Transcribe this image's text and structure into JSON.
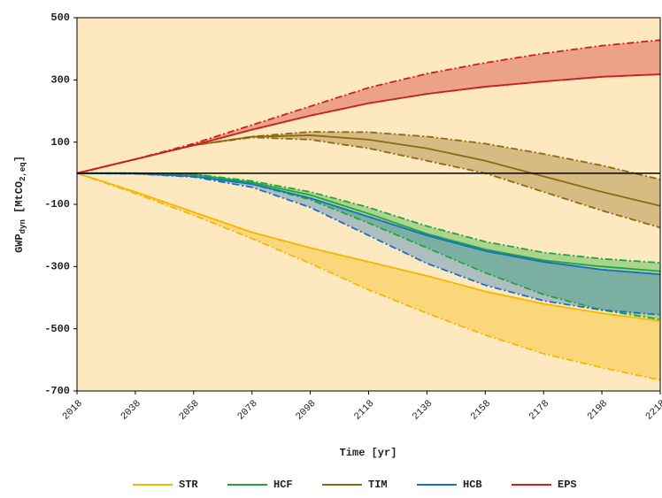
{
  "chart_data": {
    "type": "band-line",
    "xlabel": "Time [yr]",
    "ylabel": [
      "GWP",
      "dyn",
      " [MtCO",
      "2,eq",
      "]"
    ],
    "x": [
      2018,
      2038,
      2058,
      2078,
      2098,
      2118,
      2138,
      2158,
      2178,
      2198,
      2218
    ],
    "xlim": [
      2018,
      2218
    ],
    "xticks": [
      2018,
      2038,
      2058,
      2078,
      2098,
      2118,
      2138,
      2158,
      2178,
      2198,
      2218
    ],
    "ylim": [
      -700,
      500
    ],
    "yticks": [
      -700,
      -500,
      -300,
      -100,
      100,
      300,
      500
    ],
    "legend": "bottom",
    "series": [
      {
        "name": "STR",
        "color": "#f5b800",
        "values": [
          0,
          -60,
          -125,
          -190,
          -240,
          -285,
          -330,
          -380,
          -420,
          -450,
          -475
        ],
        "upper": [
          0,
          -60,
          -125,
          -190,
          -240,
          -285,
          -330,
          -380,
          -420,
          -450,
          -475
        ],
        "lower": [
          0,
          -65,
          -135,
          -210,
          -290,
          -375,
          -450,
          -520,
          -580,
          -625,
          -665
        ]
      },
      {
        "name": "HCF",
        "color": "#1aa83a",
        "values": [
          0,
          0,
          -4,
          -30,
          -70,
          -130,
          -195,
          -245,
          -280,
          -300,
          -315
        ],
        "upper": [
          0,
          0,
          -3,
          -25,
          -60,
          -110,
          -170,
          -220,
          -255,
          -275,
          -288
        ],
        "lower": [
          0,
          0,
          -5,
          -35,
          -85,
          -160,
          -240,
          -320,
          -390,
          -440,
          -470
        ]
      },
      {
        "name": "TIM",
        "color": "#8b6a12",
        "values": [
          0,
          45,
          90,
          117,
          122,
          108,
          80,
          40,
          -10,
          -60,
          -105
        ],
        "upper": [
          0,
          45,
          90,
          118,
          133,
          132,
          118,
          95,
          62,
          25,
          -20
        ],
        "lower": [
          0,
          45,
          90,
          115,
          108,
          80,
          40,
          0,
          -60,
          -120,
          -175
        ]
      },
      {
        "name": "HCB",
        "color": "#1a6fc4",
        "values": [
          0,
          -1,
          -10,
          -35,
          -80,
          -140,
          -200,
          -250,
          -285,
          -310,
          -325
        ],
        "upper": [
          0,
          -1,
          -10,
          -35,
          -80,
          -140,
          -200,
          -250,
          -285,
          -310,
          -325
        ],
        "lower": [
          0,
          -2,
          -12,
          -45,
          -110,
          -200,
          -290,
          -360,
          -410,
          -440,
          -455
        ]
      },
      {
        "name": "EPS",
        "color": "#cc1f1f",
        "values": [
          0,
          45,
          90,
          140,
          185,
          225,
          255,
          278,
          295,
          310,
          318
        ],
        "upper": [
          0,
          45,
          95,
          155,
          215,
          275,
          320,
          355,
          385,
          410,
          428
        ],
        "lower": [
          0,
          45,
          90,
          140,
          185,
          225,
          255,
          278,
          295,
          310,
          318
        ]
      }
    ]
  }
}
